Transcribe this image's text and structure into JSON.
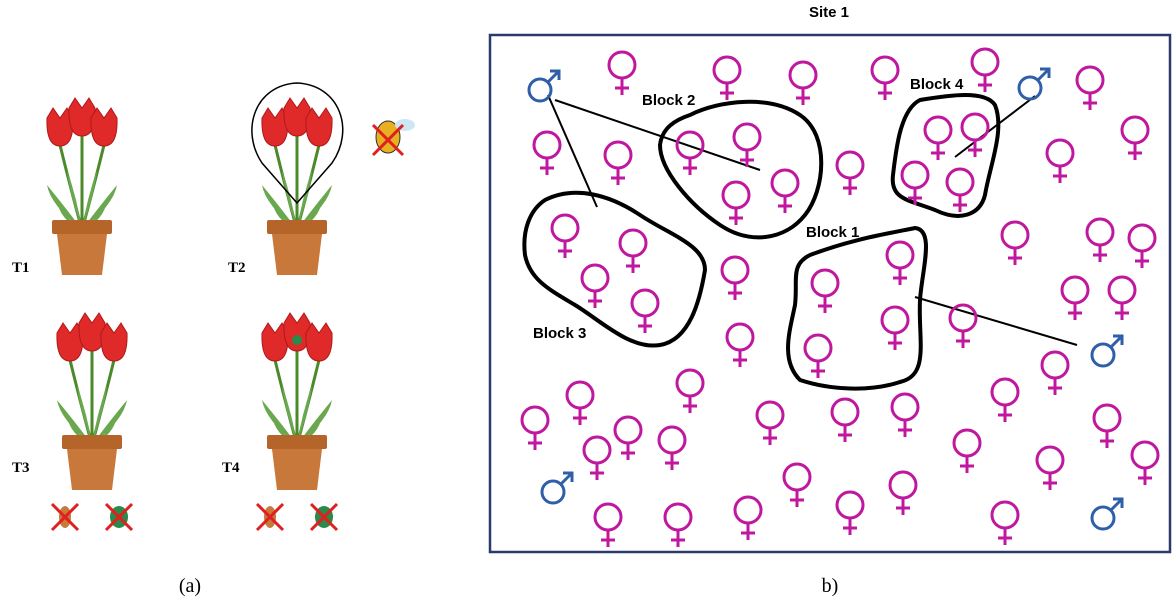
{
  "panel_a": {
    "treatments": [
      "T1",
      "T2",
      "T3",
      "T4"
    ],
    "caption": "(a)"
  },
  "panel_b": {
    "title": "Site 1",
    "blocks": [
      "Block 1",
      "Block 2",
      "Block 3",
      "Block 4"
    ],
    "caption": "b)"
  }
}
